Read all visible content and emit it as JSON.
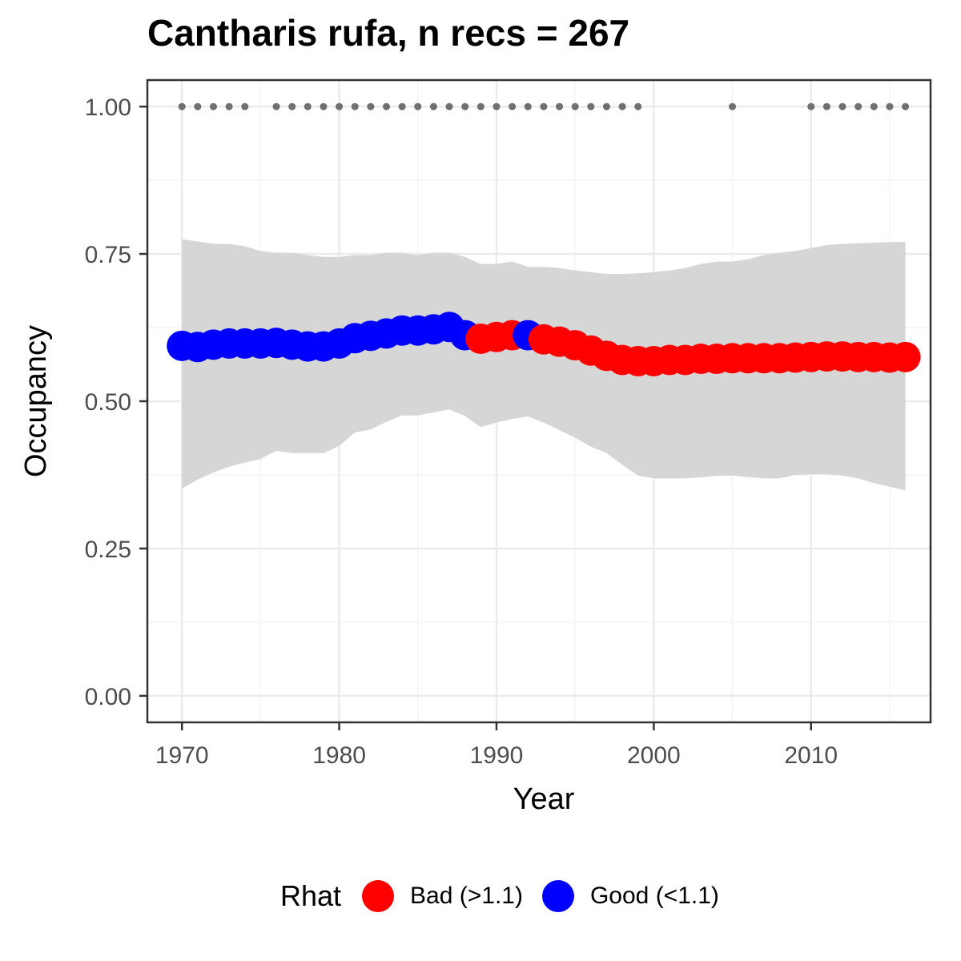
{
  "chart_data": {
    "type": "line",
    "title": "Cantharis rufa, n recs = 267",
    "xlabel": "Year",
    "ylabel": "Occupancy",
    "xlim": [
      1967.8,
      2017.6
    ],
    "ylim": [
      -0.045,
      1.045
    ],
    "x_ticks": [
      1970,
      1980,
      1990,
      2000,
      2010
    ],
    "x_tick_labels": [
      "1970",
      "1980",
      "1990",
      "2000",
      "2010"
    ],
    "y_ticks": [
      0,
      0.25,
      0.5,
      0.75,
      1
    ],
    "y_tick_labels": [
      "0.00",
      "0.25",
      "0.50",
      "0.75",
      "1.00"
    ],
    "grid": true,
    "legend_position": "bottom",
    "legend": {
      "title": "Rhat",
      "items": [
        {
          "label": "Bad (>1.1)",
          "color": "#ff0000"
        },
        {
          "label": "Good (<1.1)",
          "color": "#0000ff"
        }
      ]
    },
    "x": [
      1970,
      1971,
      1972,
      1973,
      1974,
      1975,
      1976,
      1977,
      1978,
      1979,
      1980,
      1981,
      1982,
      1983,
      1984,
      1985,
      1986,
      1987,
      1988,
      1989,
      1990,
      1991,
      1992,
      1993,
      1994,
      1995,
      1996,
      1997,
      1998,
      1999,
      2000,
      2001,
      2002,
      2003,
      2004,
      2005,
      2006,
      2007,
      2008,
      2009,
      2010,
      2011,
      2012,
      2013,
      2014,
      2015,
      2016
    ],
    "occupancy": [
      0.594,
      0.592,
      0.596,
      0.598,
      0.598,
      0.598,
      0.599,
      0.596,
      0.593,
      0.593,
      0.598,
      0.607,
      0.611,
      0.615,
      0.62,
      0.62,
      0.622,
      0.626,
      0.612,
      0.606,
      0.609,
      0.612,
      0.612,
      0.605,
      0.601,
      0.595,
      0.586,
      0.577,
      0.57,
      0.568,
      0.568,
      0.57,
      0.57,
      0.572,
      0.572,
      0.573,
      0.573,
      0.573,
      0.573,
      0.574,
      0.575,
      0.576,
      0.576,
      0.575,
      0.575,
      0.574,
      0.575
    ],
    "lower_ci": [
      0.352,
      0.367,
      0.379,
      0.389,
      0.396,
      0.402,
      0.416,
      0.412,
      0.412,
      0.412,
      0.424,
      0.447,
      0.452,
      0.465,
      0.476,
      0.476,
      0.481,
      0.486,
      0.475,
      0.456,
      0.464,
      0.47,
      0.474,
      0.464,
      0.451,
      0.438,
      0.423,
      0.412,
      0.392,
      0.374,
      0.369,
      0.369,
      0.369,
      0.371,
      0.373,
      0.374,
      0.371,
      0.369,
      0.369,
      0.375,
      0.376,
      0.376,
      0.374,
      0.369,
      0.361,
      0.355,
      0.349
    ],
    "upper_ci": [
      0.775,
      0.771,
      0.767,
      0.767,
      0.763,
      0.755,
      0.752,
      0.752,
      0.748,
      0.745,
      0.745,
      0.748,
      0.748,
      0.752,
      0.752,
      0.748,
      0.752,
      0.752,
      0.745,
      0.733,
      0.733,
      0.737,
      0.728,
      0.728,
      0.726,
      0.722,
      0.719,
      0.716,
      0.716,
      0.717,
      0.719,
      0.722,
      0.726,
      0.733,
      0.737,
      0.737,
      0.741,
      0.748,
      0.752,
      0.755,
      0.76,
      0.765,
      0.767,
      0.768,
      0.769,
      0.77,
      0.77
    ],
    "rhat_status": [
      "Good",
      "Good",
      "Good",
      "Good",
      "Good",
      "Good",
      "Good",
      "Good",
      "Good",
      "Good",
      "Good",
      "Good",
      "Good",
      "Good",
      "Good",
      "Good",
      "Good",
      "Good",
      "Good",
      "Bad",
      "Bad",
      "Bad",
      "Good",
      "Bad",
      "Bad",
      "Bad",
      "Bad",
      "Bad",
      "Bad",
      "Bad",
      "Bad",
      "Bad",
      "Bad",
      "Bad",
      "Bad",
      "Bad",
      "Bad",
      "Bad",
      "Bad",
      "Bad",
      "Bad",
      "Bad",
      "Bad",
      "Bad",
      "Bad",
      "Bad",
      "Bad"
    ],
    "record_years": [
      1970,
      1971,
      1972,
      1973,
      1974,
      1976,
      1977,
      1978,
      1979,
      1980,
      1981,
      1982,
      1983,
      1984,
      1985,
      1986,
      1987,
      1988,
      1989,
      1990,
      1991,
      1992,
      1993,
      1994,
      1995,
      1996,
      1997,
      1998,
      1999,
      2005,
      2010,
      2011,
      2012,
      2013,
      2014,
      2015,
      2016
    ],
    "record_marker_y": 1.0,
    "colors": {
      "bad": "#ff0000",
      "good": "#0000ff",
      "ribbon": "#d6d6d6",
      "record_dot": "#707070",
      "grid_major": "#ebebeb",
      "grid_minor": "#f4f4f4",
      "panel_border": "#333333",
      "tick_label": "#4d4d4d"
    }
  }
}
